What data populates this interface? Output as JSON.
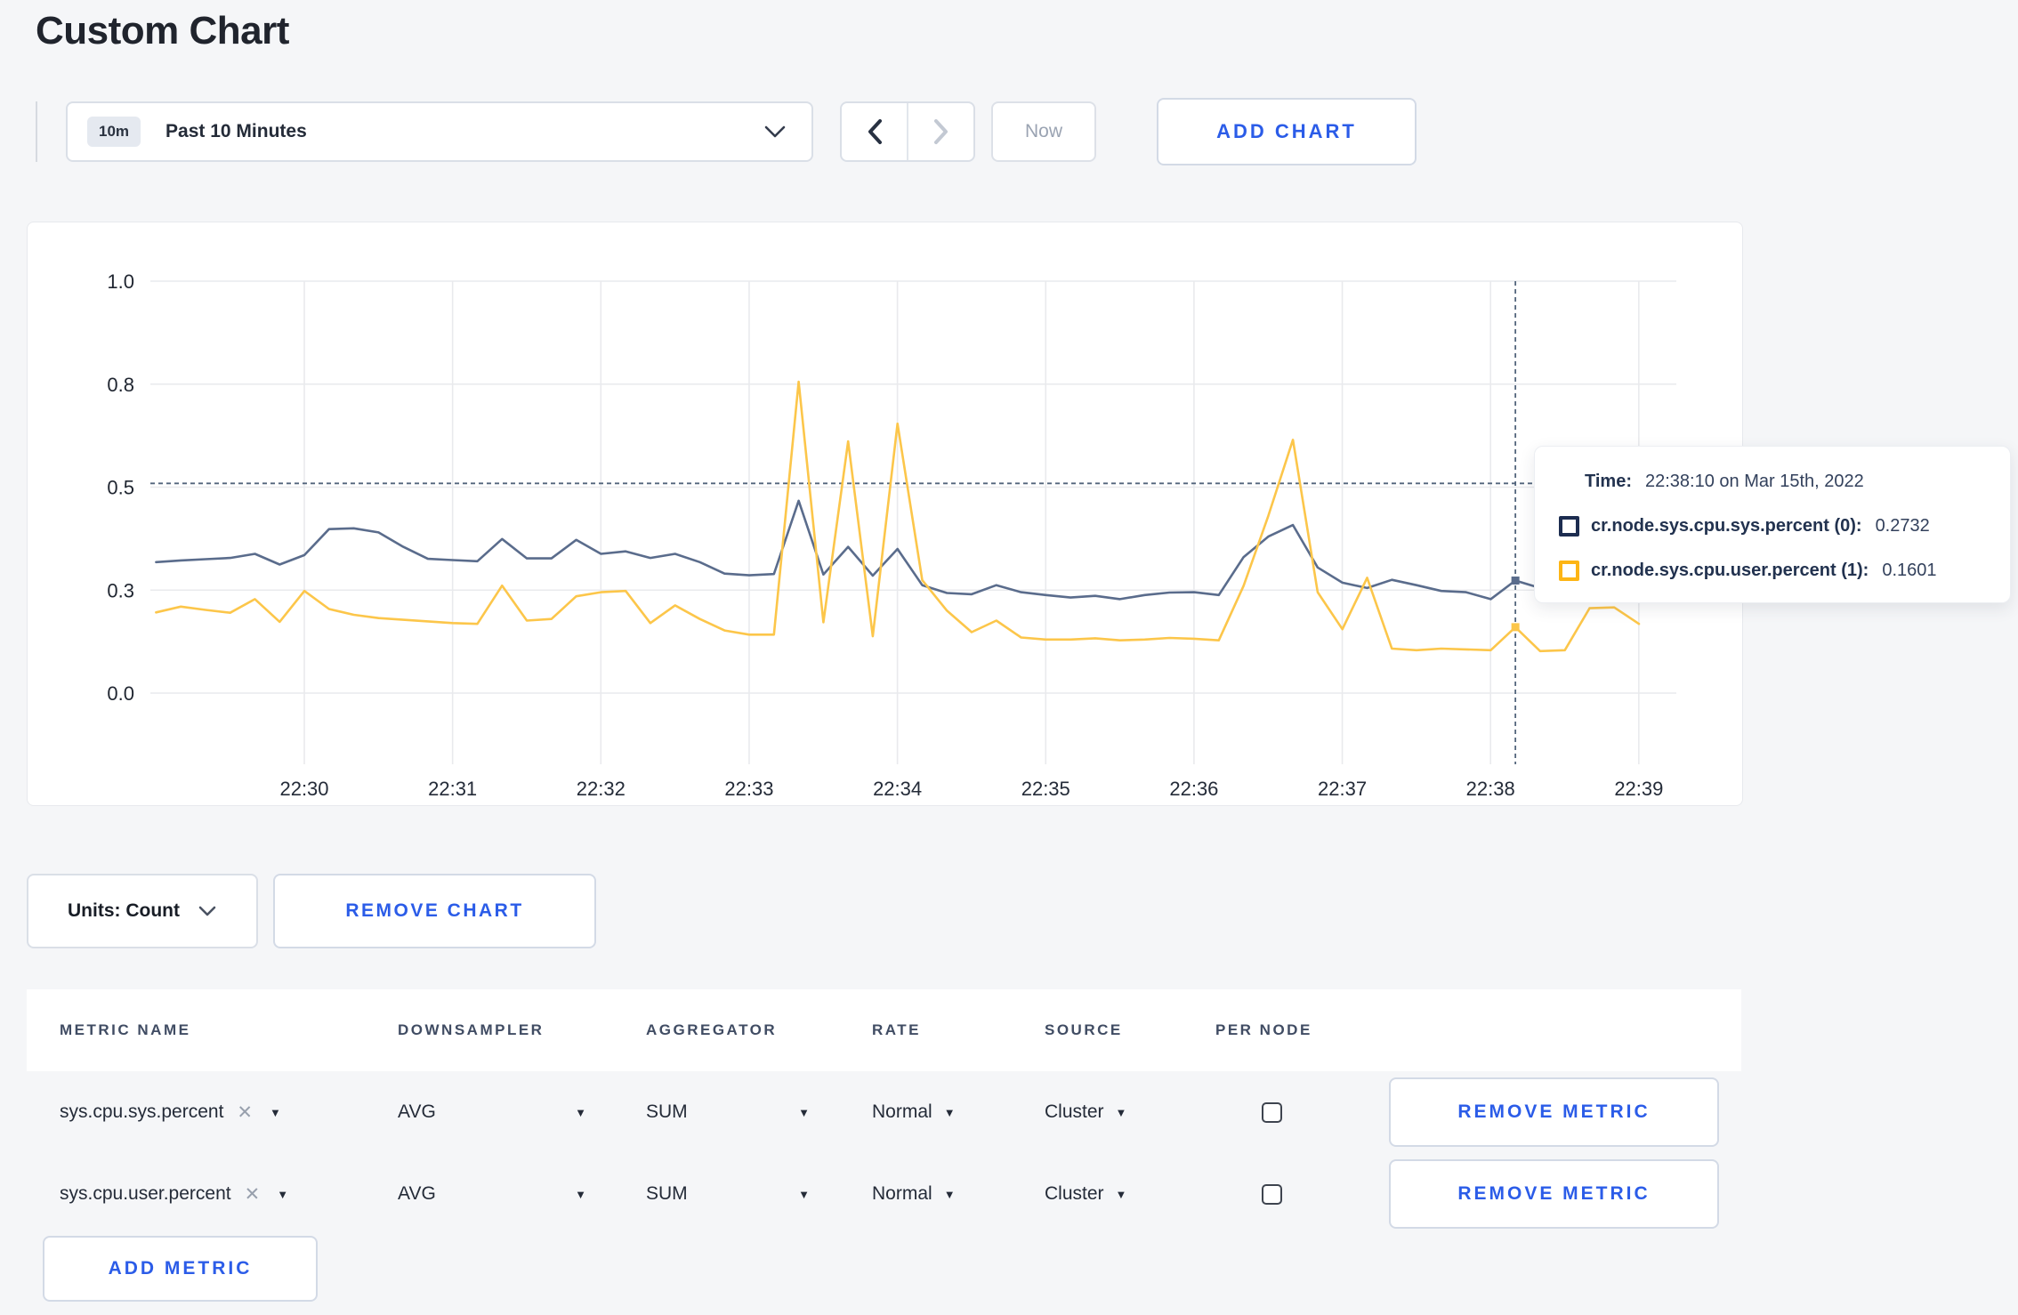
{
  "page": {
    "title": "Custom Chart"
  },
  "colors": {
    "accent_blue": "#2b5ce8",
    "series_sys": "#5a6c8c",
    "series_user": "#fcc64a",
    "tooltip_square_sys": "#1d2d50",
    "tooltip_square_user": "#fdb515",
    "crosshair": "#53657c",
    "grid": "#e9eaed",
    "page_background": "#f5f6f8"
  },
  "icons": {
    "caret_down": "▼",
    "clear_x": "✕",
    "chevron_down": "⌄",
    "chevron_left": "‹",
    "chevron_right": "›"
  },
  "toolbar": {
    "time_selector": {
      "badge": "10m",
      "label": "Past 10 Minutes"
    },
    "now_label": "Now",
    "add_chart_label": "ADD CHART"
  },
  "chart_data": {
    "type": "line",
    "title": "",
    "x_start": "22:29:00",
    "x_step_seconds": 10,
    "x_tick_labels": [
      "22:30",
      "22:31",
      "22:32",
      "22:33",
      "22:34",
      "22:35",
      "22:36",
      "22:37",
      "22:38",
      "22:39"
    ],
    "y_ticks": [
      0,
      0.25,
      0.5,
      0.75,
      1.0
    ],
    "y_tick_labels": [
      "0.0",
      "0.3",
      "0.5",
      "0.8",
      "1.0"
    ],
    "ylim": [
      0,
      1
    ],
    "grid": true,
    "legend_position": "none",
    "series": [
      {
        "name": "cr.node.sys.cpu.sys.percent",
        "color": "#5a6c8c",
        "values": [
          0.318,
          0.322,
          0.325,
          0.328,
          0.338,
          0.312,
          0.335,
          0.398,
          0.4,
          0.39,
          0.355,
          0.326,
          0.323,
          0.32,
          0.374,
          0.327,
          0.327,
          0.372,
          0.338,
          0.344,
          0.328,
          0.338,
          0.318,
          0.29,
          0.286,
          0.289,
          0.467,
          0.288,
          0.355,
          0.285,
          0.35,
          0.262,
          0.243,
          0.24,
          0.262,
          0.245,
          0.238,
          0.232,
          0.236,
          0.228,
          0.238,
          0.244,
          0.245,
          0.238,
          0.33,
          0.38,
          0.408,
          0.305,
          0.268,
          0.255,
          0.275,
          0.262,
          0.248,
          0.245,
          0.228,
          0.2732,
          0.255,
          0.245,
          0.252,
          0.255,
          0.25
        ]
      },
      {
        "name": "cr.node.sys.cpu.user.percent",
        "color": "#fcc64a",
        "values": [
          0.196,
          0.21,
          0.202,
          0.195,
          0.228,
          0.173,
          0.248,
          0.204,
          0.19,
          0.182,
          0.178,
          0.174,
          0.17,
          0.168,
          0.261,
          0.176,
          0.18,
          0.235,
          0.245,
          0.248,
          0.17,
          0.213,
          0.18,
          0.152,
          0.142,
          0.142,
          0.756,
          0.172,
          0.611,
          0.138,
          0.654,
          0.274,
          0.2,
          0.148,
          0.176,
          0.135,
          0.13,
          0.13,
          0.133,
          0.128,
          0.13,
          0.134,
          0.132,
          0.128,
          0.26,
          0.43,
          0.615,
          0.245,
          0.155,
          0.28,
          0.108,
          0.104,
          0.108,
          0.106,
          0.104,
          0.1601,
          0.102,
          0.104,
          0.206,
          0.208,
          0.168
        ]
      }
    ],
    "crosshair": {
      "index": 55,
      "time": "22:38:10",
      "y_level": 0.509,
      "sys_value": 0.2732,
      "user_value": 0.1601
    }
  },
  "tooltip": {
    "time_label": "Time:",
    "time_value": "22:38:10 on Mar 15th, 2022",
    "series": [
      {
        "name": "cr.node.sys.cpu.sys.percent (0):",
        "value": "0.2732"
      },
      {
        "name": "cr.node.sys.cpu.user.percent (1):",
        "value": "0.1601"
      }
    ]
  },
  "units_row": {
    "units_label": "Units: Count",
    "remove_chart_label": "REMOVE CHART"
  },
  "table": {
    "headers": [
      "METRIC NAME",
      "DOWNSAMPLER",
      "AGGREGATOR",
      "RATE",
      "SOURCE",
      "PER NODE"
    ],
    "rows": [
      {
        "metric": "sys.cpu.sys.percent",
        "downsampler": "AVG",
        "aggregator": "SUM",
        "rate": "Normal",
        "source": "Cluster",
        "per_node": false,
        "remove_label": "REMOVE METRIC"
      },
      {
        "metric": "sys.cpu.user.percent",
        "downsampler": "AVG",
        "aggregator": "SUM",
        "rate": "Normal",
        "source": "Cluster",
        "per_node": false,
        "remove_label": "REMOVE METRIC"
      }
    ],
    "add_metric_label": "ADD METRIC"
  }
}
